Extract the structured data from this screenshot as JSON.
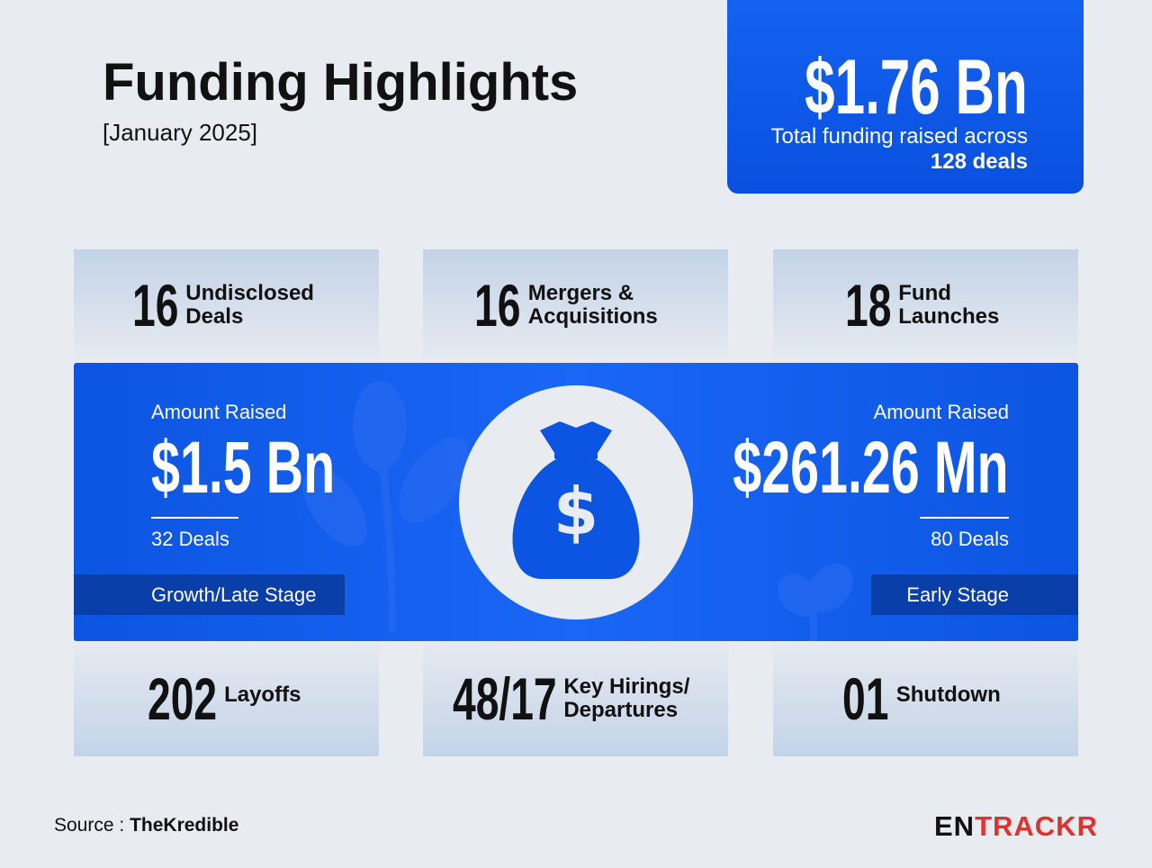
{
  "header": {
    "title": "Funding Highlights",
    "subtitle": "[January 2025]"
  },
  "total": {
    "amount": "$1.76 Bn",
    "text": "Total funding raised across",
    "deals": "128 deals"
  },
  "top_stats": [
    {
      "value": "16",
      "label": "Undisclosed Deals"
    },
    {
      "value": "16",
      "label": "Mergers & Acquisitions"
    },
    {
      "value": "18",
      "label": "Fund Launches"
    }
  ],
  "stages": [
    {
      "caption": "Amount Raised",
      "amount": "$1.5 Bn",
      "deals": "32 Deals",
      "stage": "Growth/Late Stage"
    },
    {
      "caption": "Amount Raised",
      "amount": "$261.26 Mn",
      "deals": "80 Deals",
      "stage": "Early Stage"
    }
  ],
  "bottom_stats": [
    {
      "value": "202",
      "label": "Layoffs"
    },
    {
      "value": "48/17",
      "label": "Key Hirings/ Departures"
    },
    {
      "value": "01",
      "label": "Shutdown"
    }
  ],
  "footer": {
    "source_label": "Source :",
    "source": "TheKredible",
    "brand_prefix": "EN",
    "brand_suffix": "TRACKR"
  }
}
